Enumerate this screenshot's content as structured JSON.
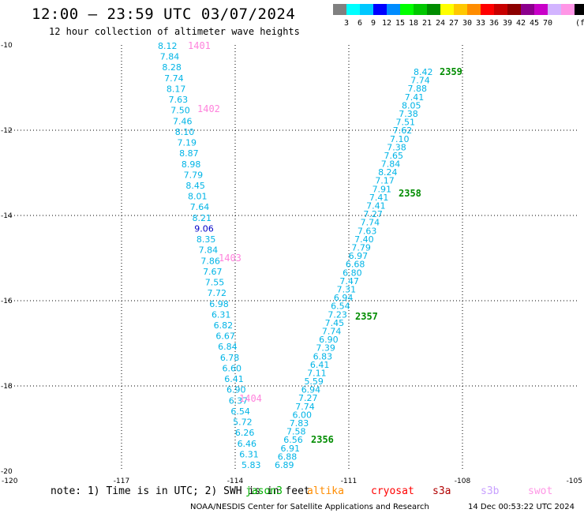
{
  "title": "12:00 – 23:59 UTC 03/07/2024",
  "subtitle": "12 hour collection of altimeter wave heights",
  "colorbar": {
    "colors": [
      "#808080",
      "#00ffff",
      "#00c8ff",
      "#0000ff",
      "#008cff",
      "#00ff00",
      "#00c800",
      "#008c00",
      "#ffff00",
      "#ffc800",
      "#ff8c00",
      "#ff0000",
      "#c80000",
      "#8c0000",
      "#8c008c",
      "#c800c8",
      "#d2b4ff",
      "#ff96e6",
      "#000000"
    ],
    "labels": [
      "3",
      "6",
      "9",
      "12",
      "15",
      "18",
      "21",
      "24",
      "27",
      "30",
      "33",
      "36",
      "39",
      "42",
      "45",
      "70",
      "(ft)"
    ]
  },
  "axes": {
    "x_ticks": [
      "-120",
      "-117",
      "-114",
      "-111",
      "-108",
      "-105"
    ],
    "y_ticks": [
      "-10",
      "-12",
      "-14",
      "-16",
      "-18",
      "-20"
    ]
  },
  "pass1": {
    "values": [
      "8.12",
      "7.84",
      "8.28",
      "7.74",
      "8.17",
      "7.63",
      "7.50",
      "7.46",
      "8.10",
      "7.19",
      "8.87",
      "8.98",
      "7.79",
      "8.45",
      "8.01",
      "7.64",
      "8.21",
      "9.06",
      "8.35",
      "7.84",
      "7.86",
      "7.67",
      "7.55",
      "7.72",
      "6.98",
      "6.31",
      "6.82",
      "6.67",
      "6.84",
      "6.78",
      "6.60",
      "6.41",
      "6.90",
      "6.37",
      "6.54",
      "5.72",
      "6.26",
      "6.46",
      "6.31",
      "5.83"
    ],
    "highlight_index": 17,
    "time_labels": [
      "1401",
      "1402",
      "1403",
      "1404"
    ]
  },
  "pass2": {
    "values": [
      "8.42",
      "7.74",
      "7.88",
      "7.41",
      "8.05",
      "7.38",
      "7.51",
      "7.62",
      "7.10",
      "7.38",
      "7.65",
      "7.84",
      "8.24",
      "7.17",
      "7.91",
      "7.41",
      "7.41",
      "7.27",
      "7.74",
      "7.63",
      "7.40",
      "7.79",
      "6.97",
      "6.68",
      "6.80",
      "7.47",
      "7.31",
      "6.94",
      "6.54",
      "7.23",
      "7.45",
      "7.74",
      "6.90",
      "7.39",
      "6.83",
      "6.41",
      "7.11",
      "5.59",
      "6.94",
      "7.27",
      "7.74",
      "6.00",
      "7.83",
      "7.58",
      "6.56",
      "6.91",
      "6.88",
      "6.89"
    ],
    "time_labels": [
      "2359",
      "2358",
      "2357",
      "2356"
    ]
  },
  "legend": [
    {
      "name": "jason3",
      "color": "#00b000"
    },
    {
      "name": "cryosat",
      "color": "#ff0000"
    },
    {
      "name": "altika",
      "color": "#ff8c00"
    },
    {
      "name": "s3a",
      "color": "#b00000"
    },
    {
      "name": "s3b",
      "color": "#c8a0ff"
    },
    {
      "name": "swot",
      "color": "#ff96e6"
    }
  ],
  "note": "note: 1) Time is in UTC; 2) SWH is in feet",
  "credit": "NOAA/NESDIS Center for Satellite Applications and Research",
  "timestamp": "14 Dec 00:53:22 UTC 2024",
  "colors": {
    "value_color": "#00b4e6",
    "highlight_color": "#0000c8",
    "pass1_time_color": "#ff82dc",
    "pass2_time_color": "#008c00"
  }
}
